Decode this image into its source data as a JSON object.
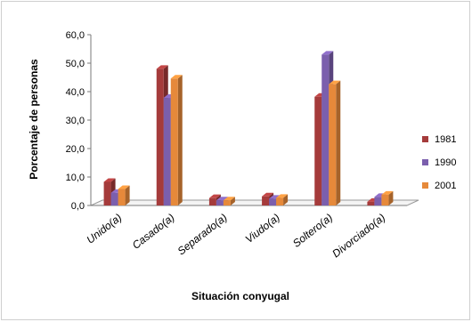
{
  "chart_data": {
    "type": "bar",
    "title": "",
    "xlabel": "Situación conyugal",
    "ylabel": "Porcentaje de personas",
    "ylim": [
      0,
      60
    ],
    "yticks": [
      "0,0",
      "10,0",
      "20,0",
      "30,0",
      "40,0",
      "50,0",
      "60,0"
    ],
    "ytick_values": [
      0,
      10,
      20,
      30,
      40,
      50,
      60
    ],
    "categories": [
      "Unido(a)",
      "Casado(a)",
      "Separado(a)",
      "Viudo(a)",
      "Soltero(a)",
      "Divorciado(a)"
    ],
    "series": [
      {
        "name": "1981",
        "color": "#a53b3b",
        "values": [
          8.3,
          48.0,
          2.6,
          3.2,
          38.2,
          1.3
        ]
      },
      {
        "name": "1990",
        "color": "#7b5fad",
        "values": [
          4.4,
          37.8,
          1.8,
          2.4,
          53.0,
          3.0
        ]
      },
      {
        "name": "2001",
        "color": "#e6893a",
        "values": [
          5.8,
          44.6,
          1.8,
          2.7,
          42.6,
          3.8
        ]
      }
    ],
    "legend": "right",
    "grid": false,
    "style": "3d-clustered-column"
  }
}
